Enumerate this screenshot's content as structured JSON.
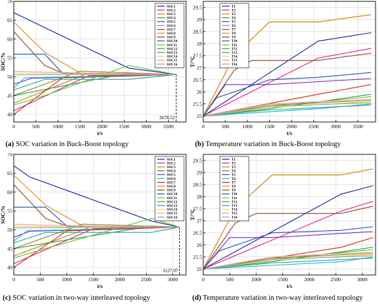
{
  "captions": [
    {
      "tag": "(a)",
      "text": " SOC variation in Buck-Boost topology"
    },
    {
      "tag": "(b)",
      "text": " Temperature variation in Buck-Boost topology"
    },
    {
      "tag": "(c)",
      "text": " SOC variation in two-way interleaved topology"
    },
    {
      "tag": "(d)",
      "text": " Temperature variation in two-way interleaved topology"
    }
  ],
  "chart_data": [
    {
      "type": "line",
      "xlabel": "t/s",
      "ylabel": "SOC/%",
      "xlim": [
        0,
        3900
      ],
      "ylim": [
        38,
        70
      ],
      "xticks": [
        0,
        500,
        1000,
        1500,
        2000,
        2500,
        3000,
        3500
      ],
      "yticks": [
        40,
        45,
        50,
        55,
        60,
        65,
        70
      ],
      "grid": true,
      "legend_position": "top-right",
      "annotation": {
        "text": "3678.52",
        "x": 3678.52
      },
      "series": [
        {
          "name": "SOC1",
          "color": "#1a1aa6",
          "x": [
            0,
            2600,
            3678
          ],
          "y": [
            67,
            52.3,
            50.6
          ]
        },
        {
          "name": "SOC2",
          "color": "#e8188a",
          "x": [
            0,
            1700,
            3678
          ],
          "y": [
            41,
            50.3,
            50.6
          ]
        },
        {
          "name": "SOC3",
          "color": "#b58a18",
          "x": [
            0,
            1700,
            3678
          ],
          "y": [
            43,
            51,
            50.6
          ]
        },
        {
          "name": "SOC4",
          "color": "#2e9a4a",
          "x": [
            0,
            2600,
            3678
          ],
          "y": [
            45,
            51,
            50.6
          ]
        },
        {
          "name": "SOC5",
          "color": "#7a2ad0",
          "x": [
            0,
            400,
            3678
          ],
          "y": [
            48,
            49.6,
            50.6
          ]
        },
        {
          "name": "SOC6",
          "color": "#1ab8c8",
          "x": [
            0,
            250,
            3678
          ],
          "y": [
            47,
            49.7,
            50.6
          ]
        },
        {
          "name": "SOC7",
          "color": "#d8240e",
          "x": [
            0,
            1100,
            3678
          ],
          "y": [
            40,
            49.7,
            50.6
          ]
        },
        {
          "name": "SOC8",
          "color": "#e08a16",
          "x": [
            0,
            700,
            1500,
            3678
          ],
          "y": [
            64.5,
            56.5,
            51,
            50.6
          ]
        },
        {
          "name": "SOC9",
          "color": "#8a4a1c",
          "x": [
            0,
            700,
            1100,
            3678
          ],
          "y": [
            62,
            53,
            51,
            50.6
          ]
        },
        {
          "name": "SOC10",
          "color": "#1a5aa8",
          "x": [
            0,
            700,
            1100,
            3678
          ],
          "y": [
            56,
            56,
            51,
            50.6
          ]
        },
        {
          "name": "SOC11",
          "color": "#58c828",
          "x": [
            0,
            700,
            2600,
            3678
          ],
          "y": [
            42.5,
            45,
            53,
            50.6
          ]
        },
        {
          "name": "SOC12",
          "color": "#8a8a2a",
          "x": [
            0,
            1500,
            3678
          ],
          "y": [
            45,
            51.5,
            50.6
          ]
        },
        {
          "name": "SOC13",
          "color": "#18a8a8",
          "x": [
            0,
            700,
            2600,
            3678
          ],
          "y": [
            46.5,
            49.3,
            49.3,
            50.6
          ]
        },
        {
          "name": "SOC14",
          "color": "#f0d830",
          "x": [
            0,
            1100,
            3678
          ],
          "y": [
            51,
            50.8,
            50.6
          ]
        },
        {
          "name": "SOC15",
          "color": "#e8a0c0",
          "x": [
            0,
            700,
            3678
          ],
          "y": [
            51.5,
            51.2,
            50.6
          ]
        },
        {
          "name": "SOC16",
          "color": "#a0a0a0",
          "x": [
            0,
            3678
          ],
          "y": [
            50.5,
            50.6
          ]
        }
      ]
    },
    {
      "type": "line",
      "xlabel": "t/s",
      "ylabel": "T/°C",
      "xlim": [
        0,
        3900
      ],
      "ylim": [
        24.75,
        29.75
      ],
      "xticks": [
        0,
        500,
        1000,
        1500,
        2000,
        2500,
        3000,
        3500
      ],
      "yticks": [
        25,
        25.5,
        26,
        26.5,
        27,
        27.5,
        28,
        28.5,
        29,
        29.5
      ],
      "grid": true,
      "legend_position": "top-left",
      "series": [
        {
          "name": "T1",
          "color": "#1a1aa6",
          "x": [
            0,
            2600,
            3800
          ],
          "y": [
            25,
            28.1,
            28.45
          ]
        },
        {
          "name": "T2",
          "color": "#e8188a",
          "x": [
            0,
            2600,
            3800
          ],
          "y": [
            25,
            27.4,
            27.8
          ]
        },
        {
          "name": "T3",
          "color": "#b58a18",
          "x": [
            0,
            700,
            1500,
            2600,
            3800
          ],
          "y": [
            25,
            27.5,
            28.9,
            28.9,
            29.2
          ]
        },
        {
          "name": "T4",
          "color": "#2e9a4a",
          "x": [
            0,
            1500,
            3800
          ],
          "y": [
            25,
            25.3,
            25.9
          ]
        },
        {
          "name": "T5",
          "color": "#7a2ad0",
          "x": [
            0,
            500,
            1500,
            3800
          ],
          "y": [
            25,
            26.3,
            26.3,
            26.55
          ]
        },
        {
          "name": "T6",
          "color": "#1ab8c8",
          "x": [
            0,
            2600,
            3800
          ],
          "y": [
            25,
            25.3,
            25.5
          ]
        },
        {
          "name": "T7",
          "color": "#d8240e",
          "x": [
            0,
            2600,
            3800
          ],
          "y": [
            25,
            25.9,
            26.3
          ]
        },
        {
          "name": "T8",
          "color": "#e08a16",
          "x": [
            0,
            700,
            1500,
            2600,
            3800
          ],
          "y": [
            25,
            27.5,
            28.9,
            28.9,
            29.2
          ]
        },
        {
          "name": "T9",
          "color": "#8a4a1c",
          "x": [
            0,
            700,
            1100,
            2600,
            3800
          ],
          "y": [
            25,
            26.9,
            27.3,
            27.3,
            27.6
          ]
        },
        {
          "name": "T10",
          "color": "#1a5aa8",
          "x": [
            0,
            300,
            1500,
            2600,
            3800
          ],
          "y": [
            25,
            25.75,
            26.5,
            26.6,
            26.8
          ]
        },
        {
          "name": "T11",
          "color": "#58c828",
          "x": [
            0,
            1500,
            3800
          ],
          "y": [
            25,
            25.4,
            25.8
          ]
        },
        {
          "name": "T12",
          "color": "#8a8a2a",
          "x": [
            0,
            1500,
            3800
          ],
          "y": [
            25,
            25.45,
            25.65
          ]
        },
        {
          "name": "T13",
          "color": "#18a8a8",
          "x": [
            0,
            1500,
            3800
          ],
          "y": [
            25,
            25.25,
            25.45
          ]
        },
        {
          "name": "T14",
          "color": "#f0d830",
          "x": [
            0,
            1500,
            3800
          ],
          "y": [
            25,
            25.35,
            25.6
          ]
        },
        {
          "name": "T15",
          "color": "#e8a0c0",
          "x": [
            0,
            1500,
            3800
          ],
          "y": [
            25,
            25.5,
            25.7
          ]
        },
        {
          "name": "T16",
          "color": "#a0a0a0",
          "x": [
            0,
            1500,
            3800
          ],
          "y": [
            25,
            25.4,
            25.55
          ]
        }
      ]
    },
    {
      "type": "line",
      "xlabel": "t/s",
      "ylabel": "SOC/%",
      "xlim": [
        0,
        3250
      ],
      "ylim": [
        38,
        70
      ],
      "xticks": [
        0,
        500,
        1000,
        1500,
        2000,
        2500,
        3000
      ],
      "yticks": [
        40,
        45,
        50,
        55,
        60,
        65,
        70
      ],
      "grid": true,
      "legend_position": "top-right",
      "annotation": {
        "text": "3127.07",
        "x": 3127.07
      },
      "series": [
        {
          "name": "SOC1",
          "color": "#1a1aa6",
          "x": [
            0,
            300,
            2600,
            3127
          ],
          "y": [
            67,
            64,
            52.3,
            50.7
          ]
        },
        {
          "name": "SOC2",
          "color": "#e8188a",
          "x": [
            0,
            1500,
            3127
          ],
          "y": [
            41,
            50.3,
            50.7
          ]
        },
        {
          "name": "SOC3",
          "color": "#b58a18",
          "x": [
            0,
            1500,
            3127
          ],
          "y": [
            43,
            51,
            50.7
          ]
        },
        {
          "name": "SOC4",
          "color": "#2e9a4a",
          "x": [
            0,
            2600,
            3127
          ],
          "y": [
            45,
            51,
            50.7
          ]
        },
        {
          "name": "SOC5",
          "color": "#7a2ad0",
          "x": [
            0,
            300,
            3127
          ],
          "y": [
            48,
            49.6,
            50.7
          ]
        },
        {
          "name": "SOC6",
          "color": "#1ab8c8",
          "x": [
            0,
            250,
            3127
          ],
          "y": [
            47,
            49.7,
            50.7
          ]
        },
        {
          "name": "SOC7",
          "color": "#d8240e",
          "x": [
            0,
            1000,
            3127
          ],
          "y": [
            40,
            49.7,
            50.7
          ]
        },
        {
          "name": "SOC8",
          "color": "#e08a16",
          "x": [
            0,
            600,
            1300,
            3127
          ],
          "y": [
            64.5,
            56.5,
            51,
            50.7
          ]
        },
        {
          "name": "SOC9",
          "color": "#8a4a1c",
          "x": [
            0,
            600,
            1000,
            3127
          ],
          "y": [
            62,
            53,
            51,
            50.7
          ]
        },
        {
          "name": "SOC10",
          "color": "#1a5aa8",
          "x": [
            0,
            600,
            1000,
            3127
          ],
          "y": [
            56,
            56,
            51,
            50.7
          ]
        },
        {
          "name": "SOC11",
          "color": "#58c828",
          "x": [
            0,
            600,
            2600,
            3127
          ],
          "y": [
            42.5,
            45,
            53,
            50.7
          ]
        },
        {
          "name": "SOC12",
          "color": "#8a8a2a",
          "x": [
            0,
            1300,
            3127
          ],
          "y": [
            45,
            51.5,
            50.7
          ]
        },
        {
          "name": "SOC13",
          "color": "#18a8a8",
          "x": [
            0,
            600,
            2600,
            3127
          ],
          "y": [
            46.5,
            49.3,
            49.3,
            50.7
          ]
        },
        {
          "name": "SOC14",
          "color": "#f0d830",
          "x": [
            0,
            1000,
            3127
          ],
          "y": [
            51,
            50.8,
            50.7
          ]
        },
        {
          "name": "SOC15",
          "color": "#e8a0c0",
          "x": [
            0,
            600,
            3127
          ],
          "y": [
            51.5,
            51.2,
            50.7
          ]
        },
        {
          "name": "SOC16",
          "color": "#a0a0a0",
          "x": [
            0,
            3127
          ],
          "y": [
            50.5,
            50.7
          ]
        }
      ]
    },
    {
      "type": "line",
      "xlabel": "t/s",
      "ylabel": "T/°C",
      "xlim": [
        0,
        3250
      ],
      "ylim": [
        24.75,
        29.75
      ],
      "xticks": [
        0,
        500,
        1000,
        1500,
        2000,
        2500,
        3000
      ],
      "yticks": [
        25,
        25.5,
        26,
        26.5,
        27,
        27.5,
        28,
        28.5,
        29,
        29.5
      ],
      "grid": true,
      "legend_position": "top-left",
      "series": [
        {
          "name": "T1",
          "color": "#1a1aa6",
          "x": [
            0,
            2600,
            3200
          ],
          "y": [
            25,
            28.1,
            28.45
          ]
        },
        {
          "name": "T2",
          "color": "#e8188a",
          "x": [
            0,
            2600,
            3200
          ],
          "y": [
            25,
            27.4,
            27.8
          ]
        },
        {
          "name": "T3",
          "color": "#b58a18",
          "x": [
            0,
            600,
            1300,
            2600,
            3200
          ],
          "y": [
            25,
            27.5,
            28.9,
            28.9,
            29.15
          ]
        },
        {
          "name": "T4",
          "color": "#2e9a4a",
          "x": [
            0,
            1300,
            3200
          ],
          "y": [
            25,
            25.3,
            25.9
          ]
        },
        {
          "name": "T5",
          "color": "#7a2ad0",
          "x": [
            0,
            500,
            1300,
            3200
          ],
          "y": [
            25,
            26.3,
            26.3,
            26.55
          ]
        },
        {
          "name": "T6",
          "color": "#1ab8c8",
          "x": [
            0,
            2600,
            3200
          ],
          "y": [
            25,
            25.3,
            25.5
          ]
        },
        {
          "name": "T7",
          "color": "#d8240e",
          "x": [
            0,
            2600,
            3200
          ],
          "y": [
            25,
            25.9,
            26.3
          ]
        },
        {
          "name": "T8",
          "color": "#e08a16",
          "x": [
            0,
            600,
            1300,
            2600,
            3200
          ],
          "y": [
            25,
            27.5,
            28.9,
            28.9,
            29.15
          ]
        },
        {
          "name": "T9",
          "color": "#8a4a1c",
          "x": [
            0,
            600,
            1000,
            2600,
            3200
          ],
          "y": [
            25,
            26.9,
            27.3,
            27.3,
            27.6
          ]
        },
        {
          "name": "T10",
          "color": "#1a5aa8",
          "x": [
            0,
            300,
            1300,
            2600,
            3200
          ],
          "y": [
            25,
            25.75,
            26.5,
            26.6,
            26.75
          ]
        },
        {
          "name": "T11",
          "color": "#58c828",
          "x": [
            0,
            1300,
            3200
          ],
          "y": [
            25,
            25.4,
            25.8
          ]
        },
        {
          "name": "T12",
          "color": "#8a8a2a",
          "x": [
            0,
            1300,
            3200
          ],
          "y": [
            25,
            25.45,
            25.65
          ]
        },
        {
          "name": "T13",
          "color": "#18a8a8",
          "x": [
            0,
            1300,
            3200
          ],
          "y": [
            25,
            25.25,
            25.45
          ]
        },
        {
          "name": "T14",
          "color": "#f0d830",
          "x": [
            0,
            1300,
            3200
          ],
          "y": [
            25,
            25.35,
            25.6
          ]
        },
        {
          "name": "T15",
          "color": "#e8a0c0",
          "x": [
            0,
            1300,
            3200
          ],
          "y": [
            25,
            25.5,
            25.7
          ]
        },
        {
          "name": "T16",
          "color": "#a0a0a0",
          "x": [
            0,
            1300,
            3200
          ],
          "y": [
            25,
            25.4,
            25.55
          ]
        }
      ]
    }
  ]
}
